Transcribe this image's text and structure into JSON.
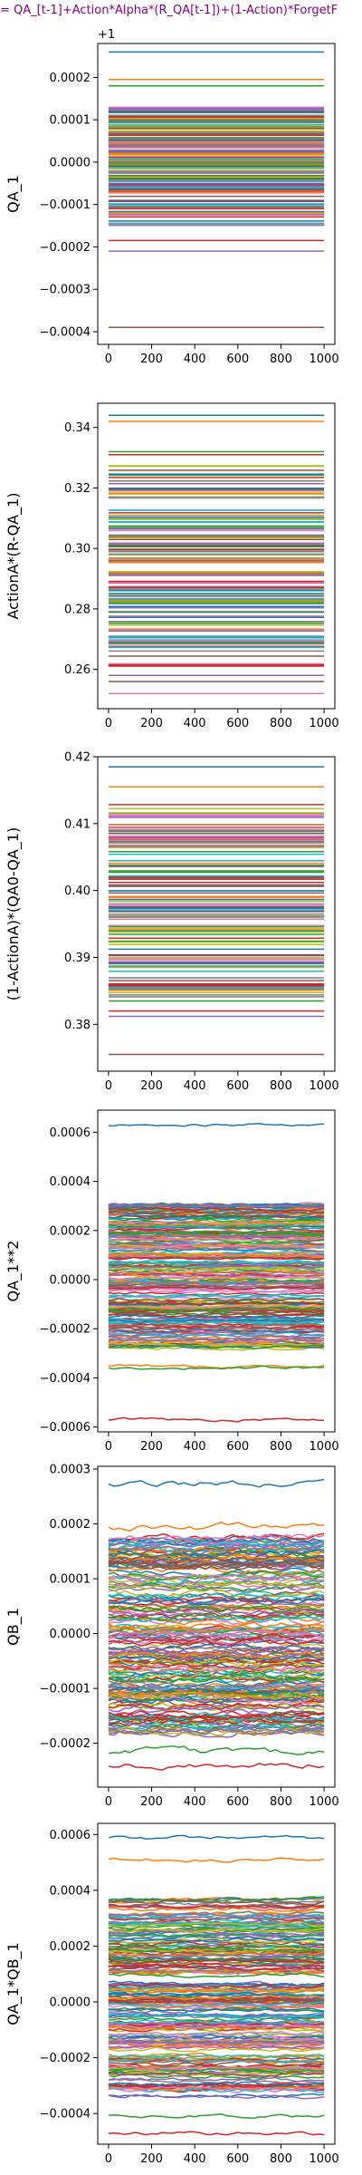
{
  "figure": {
    "title": "= QA_[t-1]+Action*Alpha*(R_QA[t-1])+(1-Action)*ForgetF"
  },
  "palette": [
    "#1f77b4",
    "#ff7f0e",
    "#2ca02c",
    "#d62728",
    "#9467bd",
    "#8c564b",
    "#e377c2",
    "#7f7f7f",
    "#bcbd22",
    "#17becf"
  ],
  "chart_data": [
    {
      "type": "line",
      "ylabel": "QA_1",
      "offset_label": "+1",
      "xlim": [
        -50,
        1050
      ],
      "ylim": [
        -0.00043,
        0.00028
      ],
      "x_ticks": [
        0,
        200,
        400,
        600,
        800,
        1000
      ],
      "x_tick_labels": [
        "0",
        "200",
        "400",
        "600",
        "800",
        "1000"
      ],
      "y_ticks": [
        -0.0004,
        -0.0003,
        -0.0002,
        -0.0001,
        0.0,
        0.0001,
        0.0002
      ],
      "y_tick_labels": [
        "−0.0004",
        "−0.0003",
        "−0.0002",
        "−0.0001",
        "0.0000",
        "0.0001",
        "0.0002"
      ],
      "series_count": 140,
      "x_range": [
        0,
        1000
      ],
      "y_spread": [
        -0.00015,
        0.00013
      ],
      "extreme_levels": [
        0.00026,
        0.000195,
        0.00018,
        -0.000185,
        -0.00021,
        -0.00039
      ],
      "noise": 0,
      "grid": false,
      "legend": "none"
    },
    {
      "type": "line",
      "ylabel": "ActionA*(R-QA_1)",
      "xlim": [
        -50,
        1050
      ],
      "ylim": [
        0.247,
        0.348
      ],
      "x_ticks": [
        0,
        200,
        400,
        600,
        800,
        1000
      ],
      "x_tick_labels": [
        "0",
        "200",
        "400",
        "600",
        "800",
        "1000"
      ],
      "y_ticks": [
        0.26,
        0.28,
        0.3,
        0.32,
        0.34
      ],
      "y_tick_labels": [
        "0.26",
        "0.28",
        "0.30",
        "0.32",
        "0.34"
      ],
      "series_count": 120,
      "x_range": [
        0,
        1000
      ],
      "y_spread": [
        0.261,
        0.328
      ],
      "extreme_levels": [
        0.344,
        0.342,
        0.332,
        0.331,
        0.258,
        0.256,
        0.252
      ],
      "noise": 0,
      "grid": false,
      "legend": "none"
    },
    {
      "type": "line",
      "ylabel": "(1-ActionA)*(QA0-QA_1)",
      "xlim": [
        -50,
        1050
      ],
      "ylim": [
        0.373,
        0.42
      ],
      "x_ticks": [
        0,
        200,
        400,
        600,
        800,
        1000
      ],
      "x_tick_labels": [
        "0",
        "200",
        "400",
        "600",
        "800",
        "1000"
      ],
      "y_ticks": [
        0.38,
        0.39,
        0.4,
        0.41,
        0.42
      ],
      "y_tick_labels": [
        "0.38",
        "0.39",
        "0.40",
        "0.41",
        "0.42"
      ],
      "series_count": 120,
      "x_range": [
        0,
        1000
      ],
      "y_spread": [
        0.384,
        0.413
      ],
      "extreme_levels": [
        0.4185,
        0.4155,
        0.3835,
        0.382,
        0.3812,
        0.3755
      ],
      "noise": 0,
      "grid": false,
      "legend": "none"
    },
    {
      "type": "line",
      "ylabel": "QA_1**2",
      "xlim": [
        -50,
        1050
      ],
      "ylim": [
        -0.00062,
        0.00069
      ],
      "x_ticks": [
        0,
        200,
        400,
        600,
        800,
        1000
      ],
      "x_tick_labels": [
        "0",
        "200",
        "400",
        "600",
        "800",
        "1000"
      ],
      "y_ticks": [
        -0.0006,
        -0.0004,
        -0.0002,
        0.0,
        0.0002,
        0.0004,
        0.0006
      ],
      "y_tick_labels": [
        "−0.0006",
        "−0.0004",
        "−0.0002",
        "0.0000",
        "0.0002",
        "0.0004",
        "0.0006"
      ],
      "series_count": 220,
      "x_range": [
        0,
        1000
      ],
      "y_spread": [
        -0.00028,
        0.00031
      ],
      "extreme_levels": [
        0.00063,
        -0.00035,
        -0.00036,
        -0.00057
      ],
      "noise": 4.5e-06,
      "grid": false,
      "legend": "none"
    },
    {
      "type": "line",
      "ylabel": "QB_1",
      "xlim": [
        -50,
        1050
      ],
      "ylim": [
        -0.00028,
        0.000305
      ],
      "x_ticks": [
        0,
        200,
        400,
        600,
        800,
        1000
      ],
      "x_tick_labels": [
        "0",
        "200",
        "400",
        "600",
        "800",
        "1000"
      ],
      "y_ticks": [
        -0.0002,
        -0.0001,
        0.0,
        0.0001,
        0.0002,
        0.0003
      ],
      "y_tick_labels": [
        "−0.0002",
        "−0.0001",
        "0.0000",
        "0.0001",
        "0.0002",
        "0.0003"
      ],
      "series_count": 200,
      "x_range": [
        0,
        1000
      ],
      "y_spread": [
        -0.00018,
        0.00018
      ],
      "extreme_levels": [
        0.000275,
        0.000195,
        -0.000215,
        -0.00024
      ],
      "noise": 4.5e-06,
      "grid": false,
      "legend": "none"
    },
    {
      "type": "line",
      "ylabel": "QA_1*QB_1",
      "xlim": [
        -50,
        1050
      ],
      "ylim": [
        -0.00051,
        0.00064
      ],
      "x_ticks": [
        0,
        200,
        400,
        600,
        800,
        1000
      ],
      "x_tick_labels": [
        "0",
        "200",
        "400",
        "600",
        "800",
        "1000"
      ],
      "y_ticks": [
        -0.0004,
        -0.0002,
        0.0,
        0.0002,
        0.0004,
        0.0006
      ],
      "y_tick_labels": [
        "−0.0004",
        "−0.0002",
        "0.0000",
        "0.0002",
        "0.0004",
        "0.0006"
      ],
      "series_count": 220,
      "x_range": [
        0,
        1000
      ],
      "y_spread": [
        -0.00034,
        0.00037
      ],
      "extreme_levels": [
        0.00059,
        0.00051,
        -0.00041,
        -0.00047
      ],
      "noise": 5e-06,
      "grid": false,
      "legend": "none"
    }
  ]
}
